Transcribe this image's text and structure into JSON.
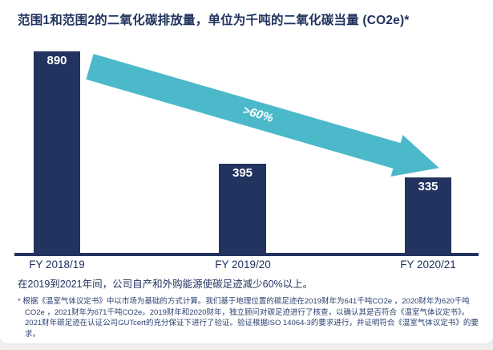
{
  "title": "范围1和范围2的二氧化碳排放量，单位为千吨的二氧化碳当量 (CO2e)*",
  "chart_data": {
    "type": "bar",
    "categories": [
      "FY 2018/19",
      "FY 2019/20",
      "FY 2020/21"
    ],
    "values": [
      890,
      395,
      335
    ],
    "ylim": [
      0,
      890
    ],
    "title": "范围1和范围2的二氧化碳排放量，单位为千吨的二氧化碳当量 (CO2e)*",
    "xlabel": "",
    "ylabel": "",
    "grid": false,
    "legend": "none",
    "annotation": ">60%",
    "annotation_meaning": "reduction of more than 60% from FY 2018/19 to FY 2020/21"
  },
  "summary": "在2019到2021年间，公司自产和外购能源使碳足迹减少60%以上。",
  "footnote": "* 根据《温室气体议定书》中以市场为基础的方式计算。我们基于地理位置的碳足迹在2019财年为641千吨CO2e ，2020财年为620千吨CO2e ，2021财年为671千吨CO2e。2019财年和2020财年，独立顾问对碳足迹进行了核查，以确认其是否符合《温室气体议定书》。2021财年碳足迹在认证公司GUTcert的充分保证下进行了验证。验证根据ISO 14064-3的要求进行，并证明符合《温室气体议定书》的要求。",
  "colors": {
    "navy": "#21335E",
    "teal": "#4BB9C9",
    "footnote": "#2C4270",
    "background": "#FFFFFF"
  }
}
